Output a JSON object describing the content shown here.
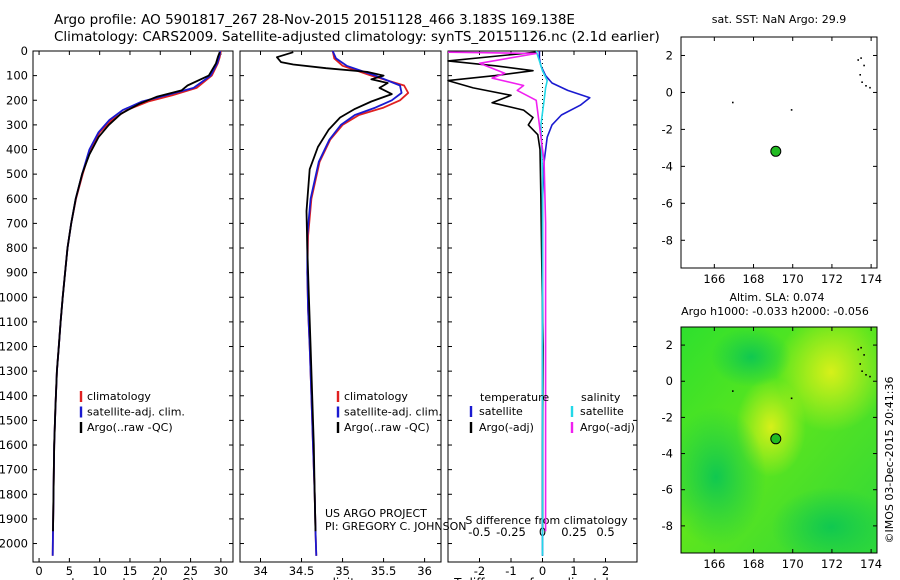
{
  "header": {
    "title_line1": "Argo profile: AO 5901817_267 28-Nov-2015 20151128_466 3.183S 169.138E",
    "title_line2": "Climatology: CARS2009. Satellite-adjusted climatology: synTS_20151126.nc (2.1d earlier)"
  },
  "colors": {
    "clim": "#e02020",
    "sat": "#1a1ad0",
    "argo": "#000000",
    "sal_sat": "#22d8e8",
    "sal_argo": "#f020f0",
    "dot": "#22bb22"
  },
  "chart_data": [
    {
      "id": "temperature",
      "type": "line",
      "xlabel": "temperature (deg C)",
      "xlim": [
        -1,
        32
      ],
      "ylim": [
        0,
        2075
      ],
      "xticks": [
        0,
        5,
        10,
        15,
        20,
        25,
        30
      ],
      "yticks": [
        0,
        100,
        200,
        300,
        400,
        500,
        600,
        700,
        800,
        900,
        1000,
        1100,
        1200,
        1300,
        1400,
        1500,
        1600,
        1700,
        1800,
        1900,
        2000
      ],
      "legend": [
        "climatology",
        "satellite-adj. clim.",
        "Argo(..raw -QC)"
      ],
      "series": [
        {
          "name": "climatology",
          "color": "clim",
          "x": [
            30.0,
            29.8,
            29.5,
            28.5,
            26.0,
            22.0,
            18.0,
            14.5,
            12.0,
            10.0,
            8.4,
            7.2,
            6.1,
            5.3,
            4.7,
            4.3,
            3.9,
            3.55,
            3.25,
            2.95,
            2.7,
            2.5,
            2.38,
            2.3,
            2.25
          ],
          "y": [
            0,
            25,
            50,
            100,
            150,
            180,
            205,
            240,
            280,
            330,
            400,
            500,
            600,
            700,
            800,
            900,
            1000,
            1100,
            1200,
            1300,
            1450,
            1600,
            1800,
            1950,
            2050
          ]
        },
        {
          "name": "satellite-adj. clim.",
          "color": "sat",
          "x": [
            29.9,
            29.7,
            29.4,
            28.3,
            25.5,
            21.0,
            17.0,
            13.8,
            11.6,
            9.8,
            8.3,
            7.1,
            6.05,
            5.3,
            4.7,
            4.3,
            3.9,
            3.55,
            3.25,
            2.95,
            2.7,
            2.5,
            2.38,
            2.3,
            2.25
          ],
          "y": [
            0,
            25,
            50,
            100,
            150,
            180,
            205,
            240,
            280,
            330,
            400,
            500,
            600,
            700,
            800,
            900,
            1000,
            1100,
            1200,
            1300,
            1450,
            1600,
            1800,
            1950,
            2050
          ]
        },
        {
          "name": "Argo(..raw -QC)",
          "color": "argo",
          "x": [
            29.8,
            29.5,
            29.2,
            28.0,
            24.5,
            23.5,
            19.5,
            16.5,
            13.5,
            11.5,
            9.8,
            8.3,
            7.1,
            6.05,
            5.3,
            4.7,
            4.3,
            3.9,
            3.55,
            3.25,
            2.95,
            2.7,
            2.5,
            2.38,
            2.3
          ],
          "y": [
            5,
            25,
            50,
            100,
            140,
            160,
            185,
            215,
            255,
            300,
            350,
            420,
            500,
            600,
            700,
            800,
            900,
            1000,
            1100,
            1200,
            1300,
            1450,
            1600,
            1800,
            1950
          ]
        }
      ]
    },
    {
      "id": "salinity",
      "type": "line",
      "xlabel": "salinity",
      "xlim": [
        33.75,
        36.2
      ],
      "ylim": [
        0,
        2075
      ],
      "xticks": [
        34,
        34.5,
        35,
        35.5,
        36
      ],
      "legend": [
        "climatology",
        "satellite-adj. clim.",
        "Argo(..raw -QC)"
      ],
      "series": [
        {
          "name": "climatology",
          "color": "clim",
          "x": [
            34.88,
            34.9,
            35.0,
            35.35,
            35.75,
            35.8,
            35.7,
            35.5,
            35.2,
            35.0,
            34.85,
            34.72,
            34.62,
            34.58,
            34.57,
            34.58,
            34.6,
            34.62,
            34.64,
            34.66,
            34.67,
            34.68
          ],
          "y": [
            0,
            30,
            60,
            100,
            140,
            170,
            200,
            230,
            260,
            300,
            360,
            450,
            600,
            750,
            900,
            1050,
            1200,
            1400,
            1600,
            1800,
            1950,
            2050
          ]
        },
        {
          "name": "satellite-adj. clim.",
          "color": "sat",
          "x": [
            34.88,
            34.92,
            35.05,
            35.4,
            35.7,
            35.72,
            35.6,
            35.4,
            35.15,
            34.98,
            34.84,
            34.71,
            34.61,
            34.57,
            34.57,
            34.58,
            34.6,
            34.62,
            34.64,
            34.66,
            34.67,
            34.68
          ],
          "y": [
            0,
            30,
            60,
            100,
            140,
            170,
            200,
            230,
            260,
            300,
            360,
            450,
            600,
            750,
            900,
            1050,
            1200,
            1400,
            1600,
            1800,
            1950,
            2050
          ]
        },
        {
          "name": "Argo(..raw -QC)",
          "color": "argo",
          "x": [
            34.4,
            34.2,
            34.25,
            34.4,
            34.8,
            35.3,
            35.5,
            35.35,
            35.55,
            35.45,
            35.6,
            35.35,
            35.15,
            34.97,
            34.83,
            34.7,
            34.6,
            34.56,
            34.57,
            34.59,
            34.61,
            34.63,
            34.65,
            34.66,
            34.67
          ],
          "y": [
            5,
            25,
            45,
            55,
            70,
            85,
            100,
            115,
            130,
            150,
            175,
            205,
            235,
            270,
            320,
            390,
            480,
            650,
            800,
            1000,
            1200,
            1400,
            1600,
            1800,
            1950
          ]
        }
      ]
    },
    {
      "id": "difference",
      "type": "line",
      "xlabel": "T difference from climatology",
      "xlabel_top": "S difference from climatology",
      "xlim": [
        -3.0,
        3.0
      ],
      "ylim": [
        0,
        2075
      ],
      "xticks": [
        -2,
        -1,
        0,
        1,
        2
      ],
      "sticks": [
        {
          "label": "-0.5",
          "v": -2
        },
        {
          "label": "-0.25",
          "v": -1
        },
        {
          "label": "0",
          "v": 0
        },
        {
          "label": "0.25",
          "v": 1
        },
        {
          "label": "0.5",
          "v": 2
        }
      ],
      "legend_titles": [
        "temperature",
        "salinity"
      ],
      "legend": [
        "satellite",
        "Argo(-adj)",
        "satellite",
        "Argo(-adj)"
      ],
      "series": [
        {
          "name": "T satellite",
          "color": "sat",
          "x": [
            -0.1,
            -0.1,
            -0.05,
            0.1,
            0.3,
            0.8,
            1.5,
            1.2,
            0.6,
            0.3,
            0.15,
            0.05,
            0.0,
            0.0,
            0.0,
            0.0,
            0.0,
            0.0
          ],
          "y": [
            0,
            30,
            60,
            100,
            130,
            160,
            190,
            220,
            260,
            300,
            350,
            450,
            600,
            800,
            1000,
            1400,
            1800,
            2050
          ]
        },
        {
          "name": "T Argo(-adj)",
          "color": "argo",
          "x": [
            -0.2,
            -3.0,
            -1.5,
            -0.3,
            -1.5,
            -3.0,
            -2.2,
            -1.0,
            -1.6,
            -0.6,
            -0.3,
            -0.45,
            -0.15,
            -0.08,
            -0.05,
            -0.02,
            0.02,
            0.0,
            0.0
          ],
          "y": [
            5,
            40,
            60,
            80,
            100,
            120,
            150,
            180,
            210,
            240,
            270,
            300,
            340,
            400,
            600,
            900,
            1200,
            1600,
            1950
          ]
        },
        {
          "name": "S satellite",
          "color": "sal_sat",
          "x": [
            -0.2,
            -0.1,
            0.0,
            0.15,
            0.1,
            0.05,
            -0.05,
            0.0,
            0.0,
            0.0,
            0.0
          ],
          "y": [
            0,
            40,
            80,
            120,
            150,
            200,
            300,
            500,
            900,
            1400,
            2050
          ]
        },
        {
          "name": "S Argo(-adj)",
          "color": "sal_argo",
          "x": [
            -3.0,
            -0.2,
            -2.0,
            -1.2,
            -1.6,
            -0.6,
            -0.8,
            -0.2,
            -0.1,
            0.05,
            0.1,
            0.1,
            0.1,
            0.1,
            0.1
          ],
          "y": [
            5,
            10,
            50,
            90,
            110,
            140,
            160,
            200,
            300,
            450,
            700,
            1000,
            1400,
            1800,
            1950
          ]
        }
      ]
    },
    {
      "id": "sst_map",
      "type": "scatter",
      "title": "sat. SST: NaN Argo: 29.9",
      "xlim": [
        164.3,
        174.3
      ],
      "ylim": [
        -9.5,
        3.0
      ],
      "xticks": [
        166,
        168,
        170,
        172,
        174
      ],
      "yticks": [
        2,
        0,
        -2,
        -4,
        -6,
        -8
      ],
      "points": [
        {
          "x": 169.138,
          "y": -3.183
        }
      ]
    },
    {
      "id": "sla_map",
      "type": "heatmap",
      "title": "Altim. SLA: 0.074",
      "subtitle": "Argo h1000: -0.033 h2000: -0.056",
      "xlim": [
        164.3,
        174.3
      ],
      "ylim": [
        -9.5,
        3.0
      ],
      "xticks": [
        166,
        168,
        170,
        172,
        174
      ],
      "yticks": [
        2,
        0,
        -2,
        -4,
        -6,
        -8
      ],
      "points": [
        {
          "x": 169.138,
          "y": -3.183
        }
      ]
    }
  ],
  "annotations": {
    "project": "US ARGO PROJECT",
    "pi": "PI: GREGORY C. JOHNSON",
    "stamp": "©IMOS 03-Dec-2015 20:41:36"
  }
}
